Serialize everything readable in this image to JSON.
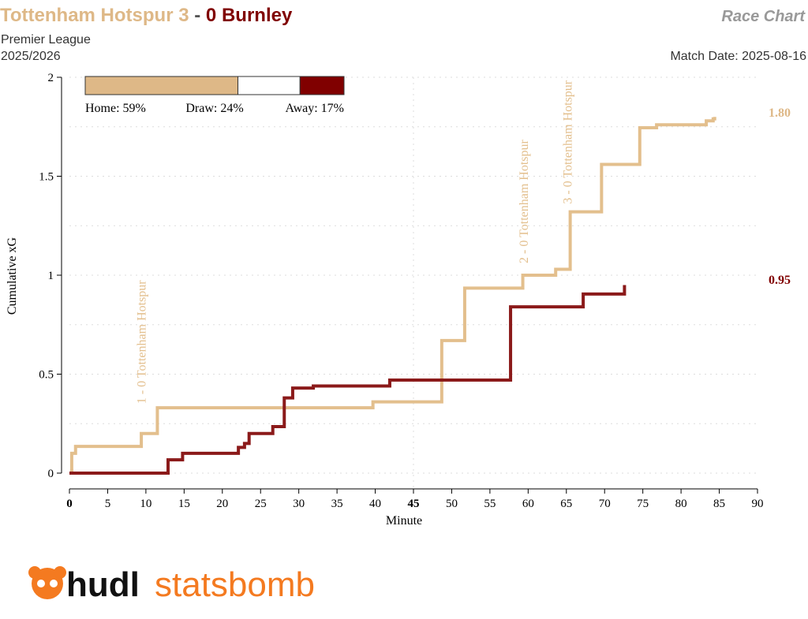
{
  "header": {
    "home_team": "Tottenham Hotspur",
    "home_score": "3",
    "separator": "-",
    "away_score": "0",
    "away_team": "Burnley",
    "chart_type": "Race Chart",
    "competition": "Premier League",
    "season": "2025/2026",
    "match_date": "Match Date: 2025-08-16"
  },
  "probabilities": {
    "home": 59,
    "draw": 24,
    "away": 17,
    "home_label": "Home: 59%",
    "draw_label": "Draw: 24%",
    "away_label": "Away: 17%"
  },
  "logo": {
    "part1": "hudl",
    "part2": "statsbomb"
  },
  "colors": {
    "home": "#deb887",
    "away": "#800000",
    "home_line": "#e3bf8d",
    "away_line": "#8b1a1a",
    "logo_orange": "#f47a20"
  },
  "chart_data": {
    "type": "line",
    "step": true,
    "title": "Race Chart",
    "xlabel": "Minute",
    "ylabel": "Cumulative xG",
    "xlim": [
      0,
      90
    ],
    "ylim": [
      0,
      2
    ],
    "xticks": [
      0,
      5,
      10,
      15,
      20,
      25,
      30,
      35,
      40,
      45,
      50,
      55,
      60,
      65,
      70,
      75,
      80,
      85,
      90
    ],
    "yticks": [
      0,
      0.5,
      1,
      1.5,
      2
    ],
    "ytick_labels": [
      "0",
      "0.5",
      "1",
      "1.5",
      "2"
    ],
    "grid": "horizontal dotted every 0.25; vertical at 45",
    "series": [
      {
        "name": "Tottenham Hotspur",
        "final_label": "1.80",
        "x": [
          0,
          0.3,
          0.8,
          9.4,
          11.5,
          39.7,
          48.7,
          51.7,
          59.3,
          63.6,
          65.5,
          69.6,
          74.6,
          76.8,
          83.3,
          84.2,
          84.4
        ],
        "y": [
          0,
          0.1,
          0.135,
          0.2,
          0.33,
          0.36,
          0.67,
          0.935,
          1.0,
          1.03,
          1.32,
          1.56,
          1.745,
          1.76,
          1.78,
          1.79,
          1.8
        ]
      },
      {
        "name": "Burnley",
        "final_label": "0.95",
        "x": [
          0,
          12.9,
          14.8,
          22.1,
          22.9,
          23.5,
          26.6,
          28.1,
          29.2,
          31.9,
          41.9,
          57.7,
          67.2,
          72.6
        ],
        "y": [
          0,
          0.067,
          0.1,
          0.13,
          0.15,
          0.2,
          0.235,
          0.38,
          0.43,
          0.44,
          0.47,
          0.84,
          0.905,
          0.95
        ]
      }
    ],
    "annotations": [
      {
        "minute": 10.5,
        "text": "1 - 0 Tottenham Hotspur",
        "base": 0.35
      },
      {
        "minute": 60.5,
        "text": "2 - 0 Tottenham Hotspur",
        "base": 1.06
      },
      {
        "minute": 66.2,
        "text": "3 - 0 Tottenham Hotspur",
        "base": 1.36
      }
    ]
  }
}
